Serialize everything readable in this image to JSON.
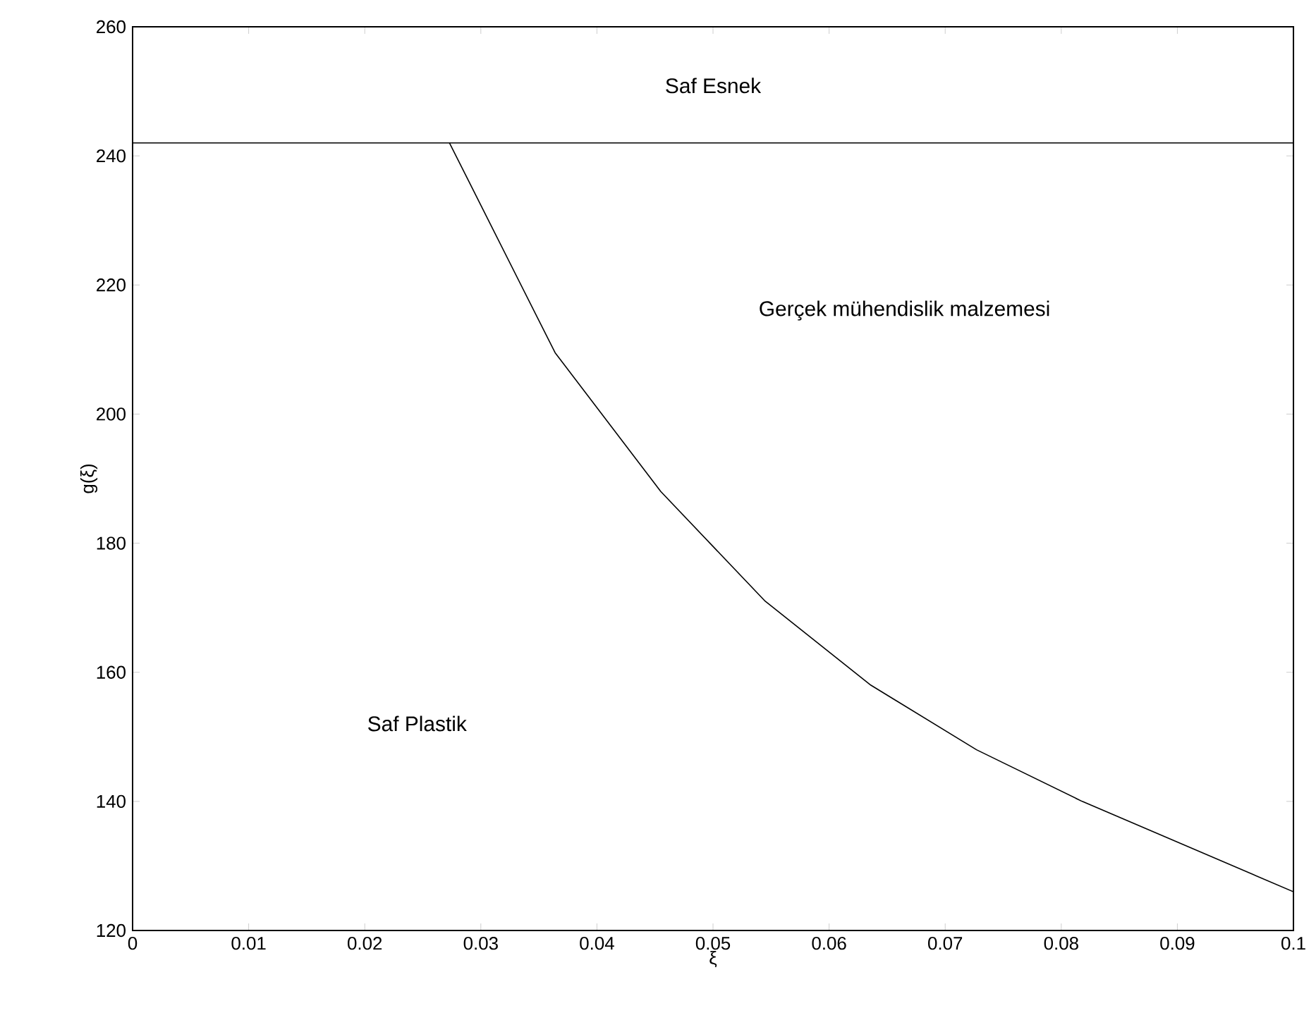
{
  "chart_data": {
    "type": "line",
    "xlabel": "ξ",
    "ylabel": "g(ξ)",
    "xlim": [
      0,
      0.1
    ],
    "ylim": [
      120,
      260
    ],
    "xticks": [
      0,
      0.01,
      0.02,
      0.03,
      0.04,
      0.05,
      0.06,
      0.07,
      0.08,
      0.09,
      0.1
    ],
    "yticks": [
      120,
      140,
      160,
      180,
      200,
      220,
      240,
      260
    ],
    "series": [
      {
        "color": "#000000",
        "x": [
          0,
          0.1
        ],
        "values": [
          242,
          242
        ]
      },
      {
        "color": "#000000",
        "x": [
          0.0273,
          0.0364,
          0.0455,
          0.0545,
          0.0636,
          0.0727,
          0.0818,
          0.0909,
          0.1
        ],
        "values": [
          242,
          209.5,
          188,
          171,
          158,
          148,
          140,
          133,
          126
        ]
      }
    ],
    "annotations": [
      "Saf Esnek",
      "Gerçek mühendislik malzemesi",
      "Saf Plastik"
    ],
    "grid": false,
    "marker": "none",
    "line_style": "solid"
  }
}
